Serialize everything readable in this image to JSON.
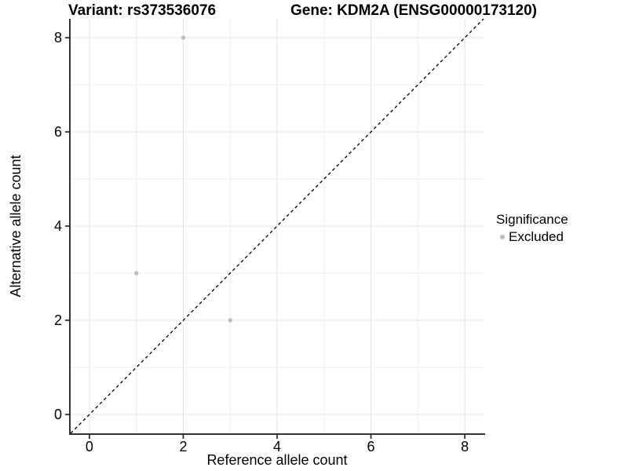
{
  "titles": {
    "variant": "Variant: rs373536076",
    "gene": "Gene: KDM2A (ENSG00000173120)"
  },
  "legend": {
    "title": "Significance",
    "items": [
      {
        "label": "Excluded",
        "color": "#BDBDBD"
      }
    ]
  },
  "colors": {
    "point": "#BDBDBD",
    "grid_major": "#E3E3E3",
    "grid_minor": "#EFEFEF",
    "axis_line": "#333333",
    "tick_mark": "#333333",
    "identity_line": "#000000",
    "text": "#000000"
  },
  "chart_data": {
    "type": "scatter",
    "title": "Variant: rs373536076    Gene: KDM2A (ENSG00000173120)",
    "xlabel": "Reference allele count",
    "ylabel": "Alternative allele count",
    "xlim": [
      -0.4,
      8.4
    ],
    "ylim": [
      -0.4,
      8.4
    ],
    "x_ticks": [
      0,
      2,
      4,
      6,
      8
    ],
    "y_ticks": [
      0,
      2,
      4,
      6,
      8
    ],
    "x_minor_ticks": [
      1,
      3,
      5,
      7
    ],
    "y_minor_ticks": [
      1,
      3,
      5,
      7
    ],
    "grid": "on",
    "legend_position": "right",
    "series": [
      {
        "name": "Excluded",
        "color": "#BDBDBD",
        "points": [
          [
            1,
            3
          ],
          [
            2,
            8
          ],
          [
            3,
            2
          ]
        ]
      }
    ],
    "reference_line": {
      "type": "identity y=x",
      "style": "dashed",
      "color": "#000000"
    }
  }
}
